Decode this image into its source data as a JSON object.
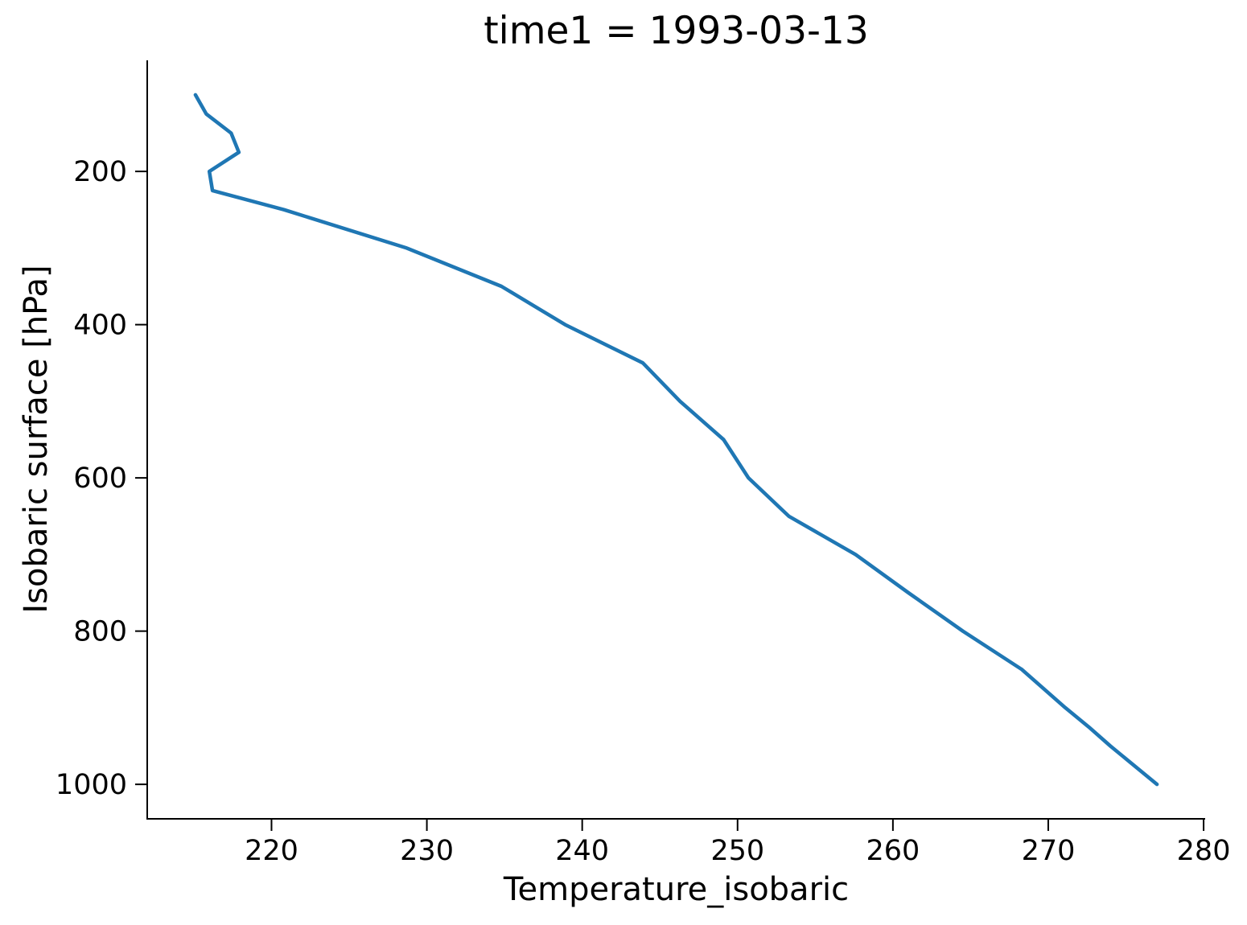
{
  "chart_data": {
    "type": "line",
    "title": "time1 = 1993-03-13",
    "xlabel": "Temperature_isobaric",
    "ylabel": "Isobaric surface [hPa]",
    "x_ticks": [
      220,
      230,
      240,
      250,
      260,
      270,
      280
    ],
    "y_ticks": [
      200,
      400,
      600,
      800,
      1000
    ],
    "xlim": [
      212.0,
      280.1
    ],
    "ylim": [
      55,
      1045
    ],
    "y_axis_inverted": true,
    "grid": false,
    "legend": "none",
    "spines": [
      "left",
      "bottom"
    ],
    "line_color": "#1f77b4",
    "axis_color": "#000000",
    "background_color": "#ffffff",
    "series": [
      {
        "name": "Temperature_isobaric",
        "color": "#1f77b4",
        "pressure_hPa": [
          100,
          125,
          150,
          175,
          200,
          225,
          250,
          300,
          350,
          400,
          450,
          500,
          550,
          600,
          650,
          700,
          750,
          800,
          850,
          900,
          925,
          950,
          1000
        ],
        "temperature": [
          215.1,
          215.8,
          217.4,
          217.9,
          216.0,
          216.2,
          220.8,
          228.7,
          234.8,
          238.9,
          243.9,
          246.3,
          249.1,
          250.7,
          253.3,
          257.6,
          261.0,
          264.5,
          268.3,
          271.1,
          272.6,
          274.0,
          277.0
        ]
      }
    ]
  }
}
